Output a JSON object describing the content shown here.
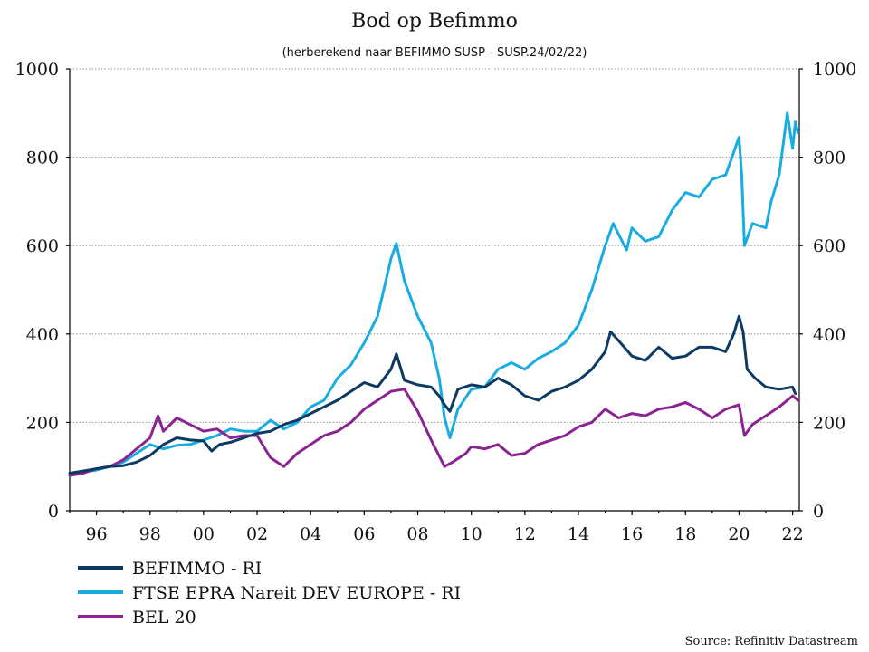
{
  "chart_data": {
    "type": "line",
    "title": "Bod op Befimmo",
    "subtitle": "(herberekend naar BEFIMMO SUSP - SUSP.24/02/22)",
    "source": "Source: Refinitiv Datastream",
    "ylim": [
      0,
      1000
    ],
    "y_ticks": [
      "0",
      "200",
      "400",
      "600",
      "800",
      "1000"
    ],
    "xlim": [
      1995.0,
      2022.25
    ],
    "x_ticks": [
      {
        "year": 1996,
        "label": "96"
      },
      {
        "year": 1998,
        "label": "98"
      },
      {
        "year": 2000,
        "label": "00"
      },
      {
        "year": 2002,
        "label": "02"
      },
      {
        "year": 2004,
        "label": "04"
      },
      {
        "year": 2006,
        "label": "06"
      },
      {
        "year": 2008,
        "label": "08"
      },
      {
        "year": 2010,
        "label": "10"
      },
      {
        "year": 2012,
        "label": "12"
      },
      {
        "year": 2014,
        "label": "14"
      },
      {
        "year": 2016,
        "label": "16"
      },
      {
        "year": 2018,
        "label": "18"
      },
      {
        "year": 2020,
        "label": "20"
      },
      {
        "year": 2022,
        "label": "22"
      }
    ],
    "grid": true,
    "legend_position": "bottom-left",
    "series": [
      {
        "name": "BEFIMMO - RI",
        "color": "#0d3a63",
        "points": [
          [
            1995.0,
            85
          ],
          [
            1995.5,
            90
          ],
          [
            1996.0,
            95
          ],
          [
            1996.5,
            100
          ],
          [
            1997.0,
            102
          ],
          [
            1997.5,
            110
          ],
          [
            1998.0,
            125
          ],
          [
            1998.5,
            150
          ],
          [
            1999.0,
            165
          ],
          [
            1999.5,
            160
          ],
          [
            2000.0,
            158
          ],
          [
            2000.3,
            135
          ],
          [
            2000.6,
            150
          ],
          [
            2001.0,
            155
          ],
          [
            2001.5,
            165
          ],
          [
            2002.0,
            175
          ],
          [
            2002.5,
            180
          ],
          [
            2003.0,
            195
          ],
          [
            2003.5,
            205
          ],
          [
            2004.0,
            220
          ],
          [
            2004.5,
            235
          ],
          [
            2005.0,
            250
          ],
          [
            2005.5,
            270
          ],
          [
            2006.0,
            290
          ],
          [
            2006.5,
            280
          ],
          [
            2007.0,
            320
          ],
          [
            2007.2,
            355
          ],
          [
            2007.5,
            295
          ],
          [
            2008.0,
            285
          ],
          [
            2008.5,
            280
          ],
          [
            2008.8,
            260
          ],
          [
            2009.0,
            240
          ],
          [
            2009.2,
            225
          ],
          [
            2009.5,
            275
          ],
          [
            2010.0,
            285
          ],
          [
            2010.5,
            280
          ],
          [
            2011.0,
            300
          ],
          [
            2011.5,
            285
          ],
          [
            2012.0,
            260
          ],
          [
            2012.5,
            250
          ],
          [
            2013.0,
            270
          ],
          [
            2013.5,
            280
          ],
          [
            2014.0,
            295
          ],
          [
            2014.5,
            320
          ],
          [
            2015.0,
            360
          ],
          [
            2015.2,
            405
          ],
          [
            2015.5,
            385
          ],
          [
            2016.0,
            350
          ],
          [
            2016.5,
            340
          ],
          [
            2017.0,
            370
          ],
          [
            2017.5,
            345
          ],
          [
            2018.0,
            350
          ],
          [
            2018.5,
            370
          ],
          [
            2019.0,
            370
          ],
          [
            2019.5,
            360
          ],
          [
            2019.8,
            400
          ],
          [
            2020.0,
            440
          ],
          [
            2020.15,
            405
          ],
          [
            2020.3,
            320
          ],
          [
            2020.6,
            300
          ],
          [
            2021.0,
            280
          ],
          [
            2021.5,
            275
          ],
          [
            2022.0,
            280
          ],
          [
            2022.1,
            265
          ]
        ]
      },
      {
        "name": "FTSE EPRA Nareit DEV EUROPE - RI",
        "color": "#19ace3",
        "points": [
          [
            1995.0,
            85
          ],
          [
            1995.5,
            88
          ],
          [
            1996.0,
            92
          ],
          [
            1996.5,
            100
          ],
          [
            1997.0,
            110
          ],
          [
            1997.5,
            130
          ],
          [
            1998.0,
            150
          ],
          [
            1998.5,
            140
          ],
          [
            1999.0,
            148
          ],
          [
            1999.5,
            150
          ],
          [
            2000.0,
            160
          ],
          [
            2000.5,
            170
          ],
          [
            2001.0,
            185
          ],
          [
            2001.5,
            180
          ],
          [
            2002.0,
            180
          ],
          [
            2002.5,
            205
          ],
          [
            2003.0,
            185
          ],
          [
            2003.5,
            200
          ],
          [
            2004.0,
            235
          ],
          [
            2004.5,
            250
          ],
          [
            2005.0,
            300
          ],
          [
            2005.5,
            330
          ],
          [
            2006.0,
            380
          ],
          [
            2006.5,
            440
          ],
          [
            2007.0,
            570
          ],
          [
            2007.2,
            605
          ],
          [
            2007.5,
            520
          ],
          [
            2008.0,
            440
          ],
          [
            2008.5,
            380
          ],
          [
            2008.8,
            300
          ],
          [
            2009.0,
            210
          ],
          [
            2009.2,
            165
          ],
          [
            2009.5,
            230
          ],
          [
            2010.0,
            275
          ],
          [
            2010.5,
            280
          ],
          [
            2011.0,
            320
          ],
          [
            2011.5,
            335
          ],
          [
            2012.0,
            320
          ],
          [
            2012.5,
            345
          ],
          [
            2013.0,
            360
          ],
          [
            2013.5,
            380
          ],
          [
            2014.0,
            420
          ],
          [
            2014.5,
            500
          ],
          [
            2015.0,
            600
          ],
          [
            2015.3,
            650
          ],
          [
            2015.8,
            590
          ],
          [
            2016.0,
            640
          ],
          [
            2016.5,
            610
          ],
          [
            2017.0,
            620
          ],
          [
            2017.5,
            680
          ],
          [
            2018.0,
            720
          ],
          [
            2018.5,
            710
          ],
          [
            2019.0,
            750
          ],
          [
            2019.5,
            760
          ],
          [
            2020.0,
            845
          ],
          [
            2020.1,
            760
          ],
          [
            2020.2,
            600
          ],
          [
            2020.5,
            650
          ],
          [
            2021.0,
            640
          ],
          [
            2021.2,
            700
          ],
          [
            2021.5,
            760
          ],
          [
            2021.8,
            900
          ],
          [
            2022.0,
            820
          ],
          [
            2022.1,
            880
          ],
          [
            2022.2,
            855
          ]
        ]
      },
      {
        "name": "BEL 20",
        "color": "#8b2393",
        "points": [
          [
            1995.0,
            80
          ],
          [
            1995.5,
            85
          ],
          [
            1996.0,
            95
          ],
          [
            1996.5,
            100
          ],
          [
            1997.0,
            115
          ],
          [
            1997.5,
            140
          ],
          [
            1998.0,
            165
          ],
          [
            1998.3,
            215
          ],
          [
            1998.5,
            180
          ],
          [
            1999.0,
            210
          ],
          [
            1999.5,
            195
          ],
          [
            2000.0,
            180
          ],
          [
            2000.5,
            185
          ],
          [
            2001.0,
            165
          ],
          [
            2001.5,
            170
          ],
          [
            2002.0,
            170
          ],
          [
            2002.5,
            120
          ],
          [
            2003.0,
            100
          ],
          [
            2003.5,
            130
          ],
          [
            2004.0,
            150
          ],
          [
            2004.5,
            170
          ],
          [
            2005.0,
            180
          ],
          [
            2005.5,
            200
          ],
          [
            2006.0,
            230
          ],
          [
            2006.5,
            250
          ],
          [
            2007.0,
            270
          ],
          [
            2007.5,
            275
          ],
          [
            2008.0,
            225
          ],
          [
            2008.5,
            160
          ],
          [
            2009.0,
            100
          ],
          [
            2009.3,
            110
          ],
          [
            2009.8,
            130
          ],
          [
            2010.0,
            145
          ],
          [
            2010.5,
            140
          ],
          [
            2011.0,
            150
          ],
          [
            2011.5,
            125
          ],
          [
            2012.0,
            130
          ],
          [
            2012.5,
            150
          ],
          [
            2013.0,
            160
          ],
          [
            2013.5,
            170
          ],
          [
            2014.0,
            190
          ],
          [
            2014.5,
            200
          ],
          [
            2015.0,
            230
          ],
          [
            2015.5,
            210
          ],
          [
            2016.0,
            220
          ],
          [
            2016.5,
            215
          ],
          [
            2017.0,
            230
          ],
          [
            2017.5,
            235
          ],
          [
            2018.0,
            245
          ],
          [
            2018.5,
            230
          ],
          [
            2019.0,
            210
          ],
          [
            2019.5,
            230
          ],
          [
            2020.0,
            240
          ],
          [
            2020.2,
            170
          ],
          [
            2020.5,
            195
          ],
          [
            2021.0,
            215
          ],
          [
            2021.5,
            235
          ],
          [
            2022.0,
            260
          ],
          [
            2022.2,
            250
          ]
        ]
      }
    ]
  }
}
